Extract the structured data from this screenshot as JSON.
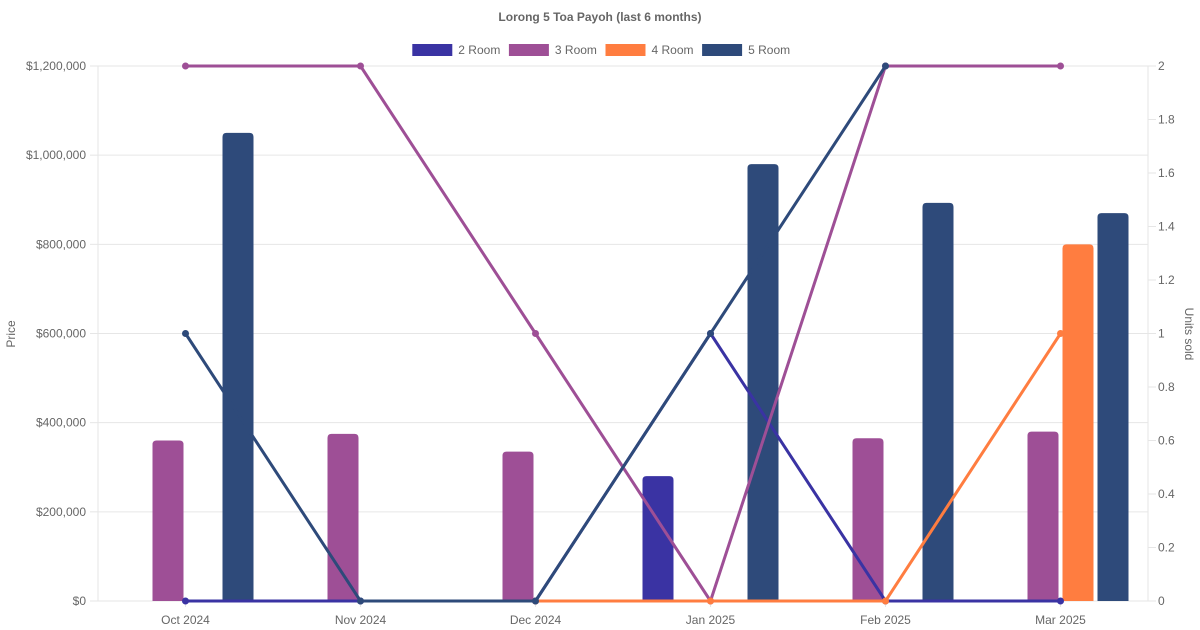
{
  "chart_data": {
    "type": "bar",
    "title": "Lorong 5 Toa Payoh (last 6 months)",
    "categories": [
      "Oct 2024",
      "Nov 2024",
      "Dec 2024",
      "Jan 2025",
      "Feb 2025",
      "Mar 2025"
    ],
    "y_left": {
      "label": "Price",
      "lim": [
        0,
        1200000
      ],
      "ticks": [
        0,
        200000,
        400000,
        600000,
        800000,
        1000000,
        1200000
      ],
      "tick_labels": [
        "$0",
        "$200,000",
        "$400,000",
        "$600,000",
        "$800,000",
        "$1,000,000",
        "$1,200,000"
      ]
    },
    "y_right": {
      "label": "Units sold",
      "lim": [
        0,
        2
      ],
      "ticks": [
        0,
        0.2,
        0.4,
        0.6,
        0.8,
        1,
        1.2,
        1.4,
        1.6,
        1.8,
        2
      ],
      "tick_labels": [
        "0",
        "0.2",
        "0.4",
        "0.6",
        "0.8",
        "1",
        "1.2",
        "1.4",
        "1.6",
        "1.8",
        "2"
      ]
    },
    "legend_position": "top",
    "grid": true,
    "series": [
      {
        "name": "2 Room",
        "color": "#3a33a3",
        "price": [
          null,
          null,
          null,
          280000,
          null,
          null
        ],
        "units": [
          0,
          0,
          0,
          1,
          0,
          0
        ]
      },
      {
        "name": "3 Room",
        "color": "#9e4f96",
        "price": [
          360000,
          375000,
          335000,
          null,
          365000,
          380000
        ],
        "units": [
          2,
          2,
          1,
          0,
          2,
          2
        ]
      },
      {
        "name": "4 Room",
        "color": "#ff7d40",
        "price": [
          null,
          null,
          null,
          null,
          null,
          800000
        ],
        "units": [
          null,
          null,
          0,
          0,
          0,
          1
        ]
      },
      {
        "name": "5 Room",
        "color": "#2e4a7a",
        "price": [
          1050000,
          null,
          null,
          980000,
          893000,
          870000
        ],
        "units": [
          1,
          0,
          0,
          1,
          2,
          null
        ]
      }
    ]
  }
}
